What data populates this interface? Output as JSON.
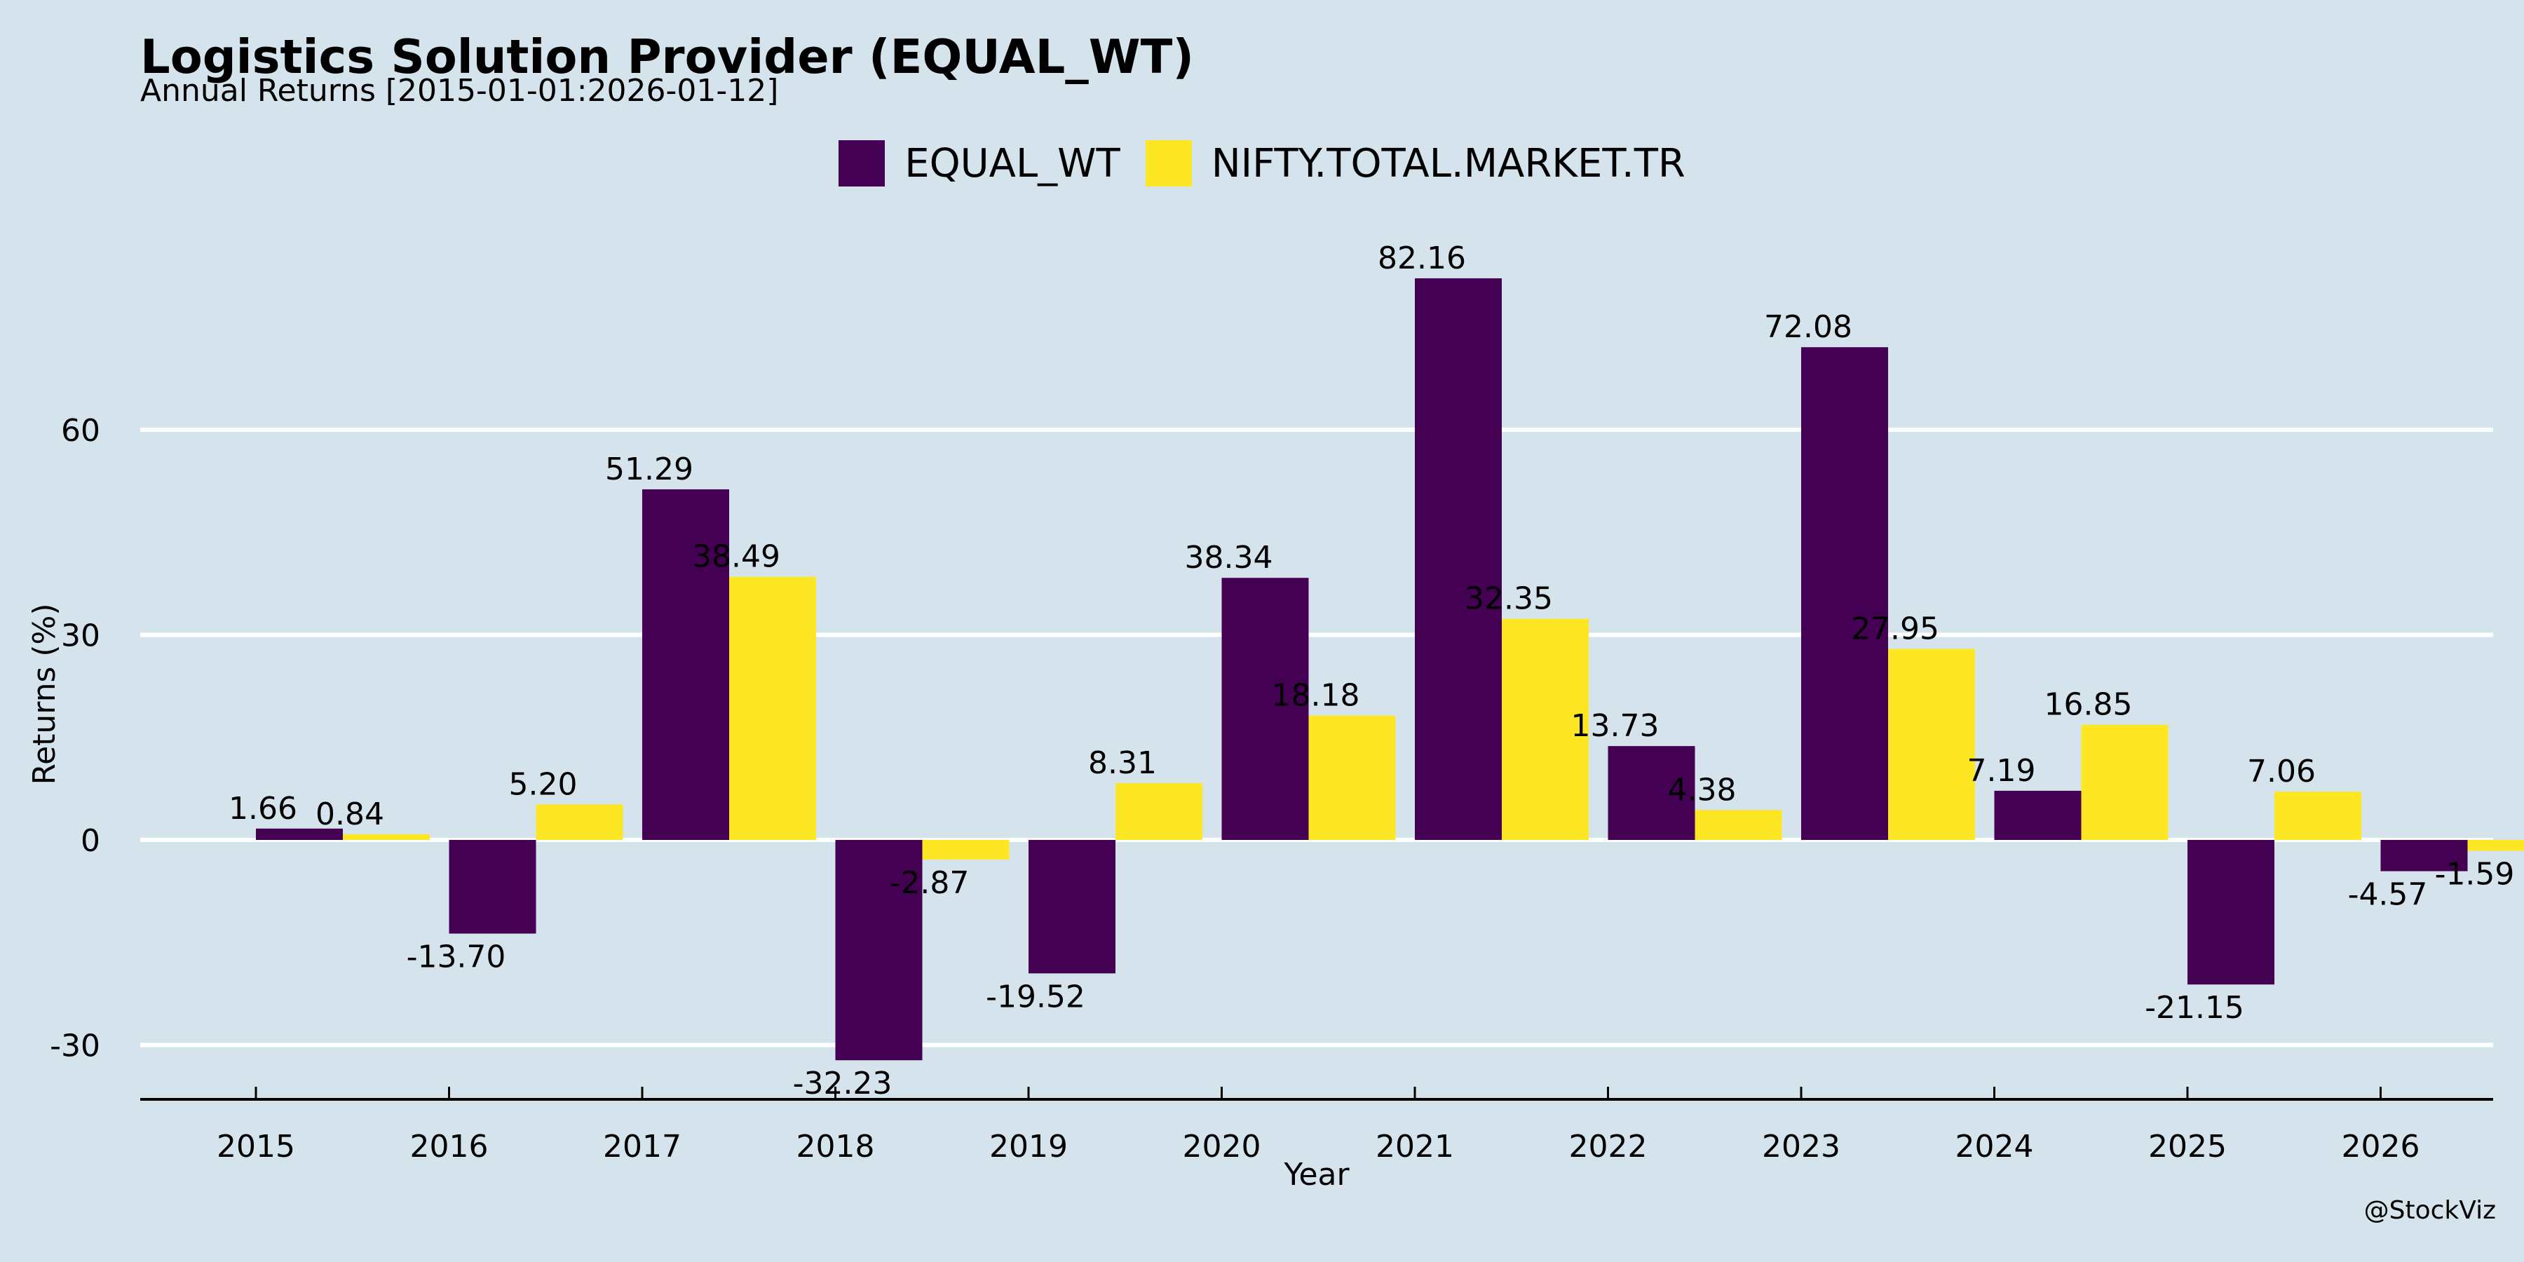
{
  "colors": {
    "background": "#d5e4ec",
    "series1": "#440154",
    "series2": "#fde725",
    "grid": "#ffffff"
  },
  "watermark": "@StockViz",
  "chart_data": {
    "type": "bar",
    "title": "Logistics Solution Provider (EQUAL_WT)",
    "subtitle": "Annual Returns [2015-01-01:2026-01-12]",
    "xlabel": "Year",
    "ylabel": "Returns (%)",
    "ylim": [
      -38,
      90
    ],
    "yticks": [
      -30,
      0,
      30,
      60
    ],
    "grid": true,
    "legend_position": "top-center",
    "categories": [
      "2015",
      "2016",
      "2017",
      "2018",
      "2019",
      "2020",
      "2021",
      "2022",
      "2023",
      "2024",
      "2025",
      "2026"
    ],
    "series": [
      {
        "name": "EQUAL_WT",
        "color": "#440154",
        "values": [
          1.66,
          -13.7,
          51.29,
          -32.23,
          -19.52,
          38.34,
          82.16,
          13.73,
          72.08,
          7.19,
          -21.15,
          -4.57
        ]
      },
      {
        "name": "NIFTY.TOTAL.MARKET.TR",
        "color": "#fde725",
        "values": [
          0.84,
          5.2,
          38.49,
          -2.87,
          8.31,
          18.18,
          32.35,
          4.38,
          27.95,
          16.85,
          7.06,
          -1.59
        ]
      }
    ]
  }
}
